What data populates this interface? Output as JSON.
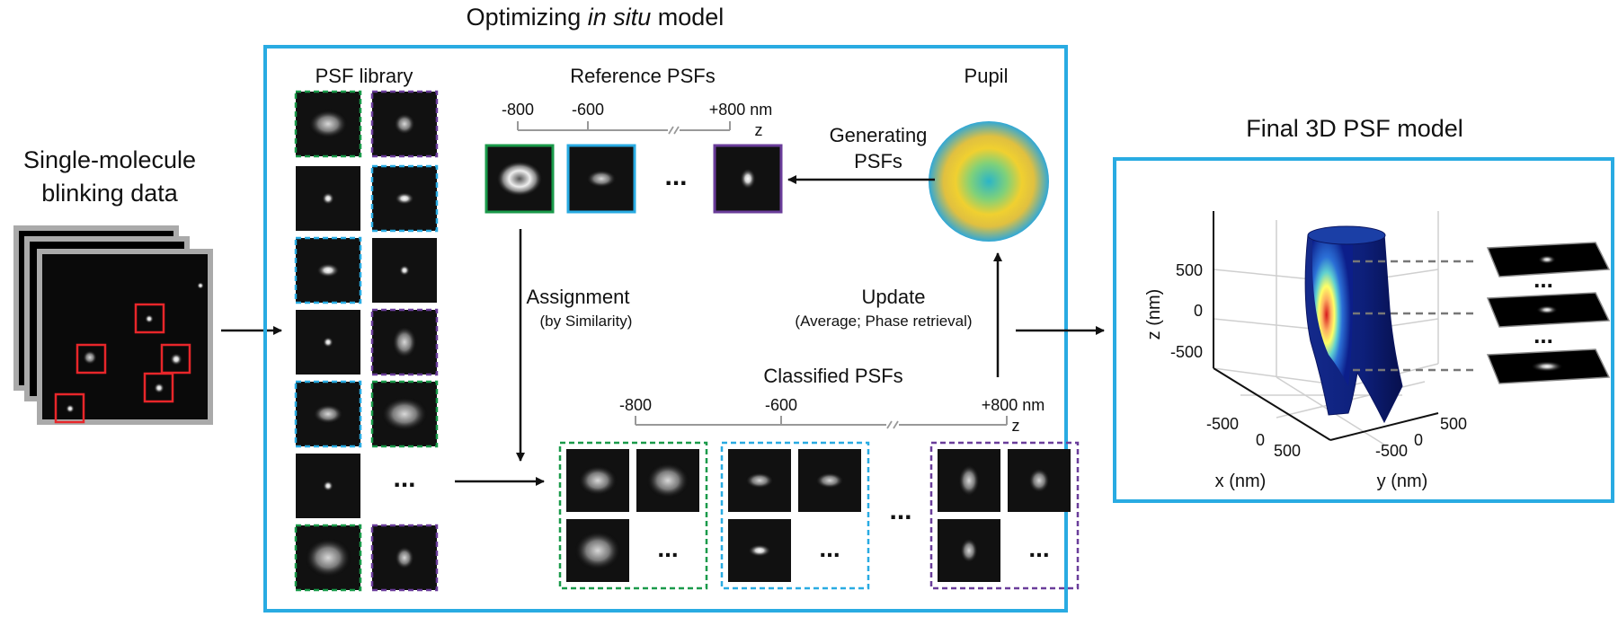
{
  "title_prefix": "Optimizing ",
  "title_italic": "in situ",
  "title_suffix": " model",
  "left": {
    "line1": "Single-molecule",
    "line2": "blinking data"
  },
  "psf_library": {
    "label": "PSF library",
    "ellipsis": "..."
  },
  "reference": {
    "label": "Reference PSFs",
    "ticks": [
      "-800",
      "-600",
      "+800 nm"
    ],
    "axis": "z",
    "ellipsis": "..."
  },
  "pupil": {
    "label": "Pupil"
  },
  "generating": {
    "line1": "Generating",
    "line2": "PSFs"
  },
  "assignment": {
    "line1": "Assignment",
    "line2": "(by Similarity)"
  },
  "update": {
    "line1": "Update",
    "line2": "(Average; Phase retrieval)"
  },
  "classified": {
    "label": "Classified PSFs",
    "ticks": [
      "-800",
      "-600",
      "+800 nm"
    ],
    "axis": "z",
    "ellipsis": "..."
  },
  "final": {
    "title": "Final 3D PSF model",
    "z_label": "z (nm)",
    "z_ticks": [
      "500",
      "0",
      "-500"
    ],
    "x_label": "x (nm)",
    "x_ticks": [
      "-500",
      "0",
      "500"
    ],
    "y_label": "y (nm)",
    "y_ticks": [
      "-500",
      "0",
      "500"
    ],
    "ellipsis": "..."
  },
  "colors": {
    "box_blue": "#29abe2",
    "green": "#1a9a4a",
    "blue": "#29abe2",
    "purple": "#6a3d9a",
    "red": "#e8262a"
  }
}
